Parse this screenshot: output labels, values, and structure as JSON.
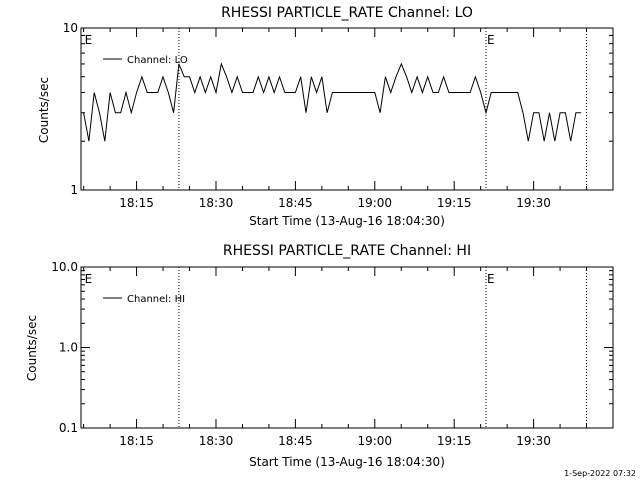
{
  "chart_data": [
    {
      "type": "line",
      "title": "RHESSI PARTICLE_RATE Channel: LO",
      "xlabel": "Start Time (13-Aug-16 18:04:30)",
      "ylabel": "Counts/sec",
      "yscale": "log",
      "ylim": [
        1,
        10
      ],
      "ytick_values": [
        1,
        10
      ],
      "ytick_labels": [
        "1",
        "10"
      ],
      "xlim": [
        "18:04:30",
        "19:45:00"
      ],
      "xtick_labels": [
        "18:15",
        "18:30",
        "18:45",
        "19:00",
        "19:15",
        "19:30"
      ],
      "legend": {
        "position": "top-left",
        "label": "Channel: LO"
      },
      "event_marker_label": "E",
      "event_lines": [
        "18:23:00",
        "19:21:00",
        "19:40:00"
      ],
      "event_marker_at": [
        "18:05:00",
        "19:21:00"
      ],
      "series": [
        {
          "name": "Channel: LO",
          "x": [
            "18:05:00",
            "18:06:00",
            "18:07:00",
            "18:08:00",
            "18:09:00",
            "18:10:00",
            "18:11:00",
            "18:12:00",
            "18:13:00",
            "18:14:00",
            "18:15:00",
            "18:16:00",
            "18:17:00",
            "18:18:00",
            "18:19:00",
            "18:20:00",
            "18:21:00",
            "18:22:00",
            "18:23:00",
            "18:24:00",
            "18:25:00",
            "18:26:00",
            "18:27:00",
            "18:28:00",
            "18:29:00",
            "18:30:00",
            "18:31:00",
            "18:32:00",
            "18:33:00",
            "18:34:00",
            "18:35:00",
            "18:36:00",
            "18:37:00",
            "18:38:00",
            "18:39:00",
            "18:40:00",
            "18:41:00",
            "18:42:00",
            "18:43:00",
            "18:44:00",
            "18:45:00",
            "18:46:00",
            "18:47:00",
            "18:48:00",
            "18:49:00",
            "18:50:00",
            "18:51:00",
            "18:52:00",
            "18:53:00",
            "18:54:00",
            "18:55:00",
            "18:56:00",
            "18:57:00",
            "18:58:00",
            "18:59:00",
            "19:00:00",
            "19:01:00",
            "19:02:00",
            "19:03:00",
            "19:04:00",
            "19:05:00",
            "19:06:00",
            "19:07:00",
            "19:08:00",
            "19:09:00",
            "19:10:00",
            "19:11:00",
            "19:12:00",
            "19:13:00",
            "19:14:00",
            "19:15:00",
            "19:16:00",
            "19:17:00",
            "19:18:00",
            "19:19:00",
            "19:20:00",
            "19:21:00",
            "19:22:00",
            "19:23:00",
            "19:24:00",
            "19:25:00",
            "19:26:00",
            "19:27:00",
            "19:28:00",
            "19:29:00",
            "19:30:00",
            "19:31:00",
            "19:32:00",
            "19:33:00",
            "19:34:00",
            "19:35:00",
            "19:36:00",
            "19:37:00",
            "19:38:00",
            "19:39:00"
          ],
          "y": [
            3,
            2,
            4,
            3,
            2,
            4,
            3,
            3,
            4,
            3,
            4,
            5,
            4,
            4,
            4,
            5,
            4,
            3,
            6,
            5,
            5,
            4,
            5,
            4,
            5,
            4,
            6,
            5,
            4,
            5,
            4,
            4,
            4,
            5,
            4,
            5,
            4,
            5,
            4,
            4,
            4,
            5,
            3,
            5,
            4,
            5,
            3,
            4,
            4,
            4,
            4,
            4,
            4,
            4,
            4,
            4,
            3,
            5,
            4,
            5,
            6,
            5,
            4,
            5,
            4,
            5,
            4,
            4,
            5,
            4,
            4,
            4,
            4,
            4,
            5,
            4,
            3,
            4,
            4,
            4,
            4,
            4,
            4,
            3,
            2,
            3,
            3,
            2,
            3,
            2,
            3,
            3,
            2,
            3,
            3
          ]
        }
      ]
    },
    {
      "type": "line",
      "title": "RHESSI PARTICLE_RATE Channel: HI",
      "xlabel": "Start Time (13-Aug-16 18:04:30)",
      "ylabel": "Counts/sec",
      "yscale": "log",
      "ylim": [
        0.1,
        10
      ],
      "ytick_values": [
        0.1,
        1,
        10
      ],
      "ytick_labels": [
        "0.1",
        "1.0",
        "10.0"
      ],
      "xlim": [
        "18:04:30",
        "19:45:00"
      ],
      "xtick_labels": [
        "18:15",
        "18:30",
        "18:45",
        "19:00",
        "19:15",
        "19:30"
      ],
      "legend": {
        "position": "top-left",
        "label": "Channel: HI"
      },
      "event_marker_label": "E",
      "event_lines": [
        "18:23:00",
        "19:21:00",
        "19:40:00"
      ],
      "event_marker_at": [
        "18:05:00",
        "19:21:00"
      ],
      "series": [
        {
          "name": "Channel: HI",
          "x": [],
          "y": []
        }
      ]
    }
  ],
  "footer": {
    "timestamp": "1-Sep-2022 07:32"
  },
  "style": {
    "line_color": "#000000",
    "background": "#ffffff"
  }
}
